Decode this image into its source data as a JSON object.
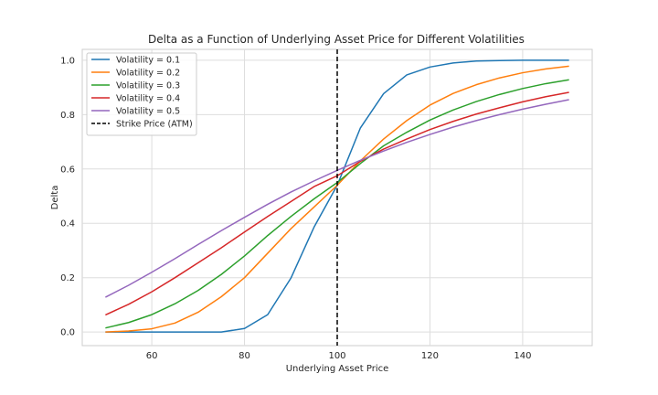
{
  "chart_data": {
    "type": "line",
    "title": "Delta as a Function of Underlying Asset Price for Different Volatilities",
    "xlabel": "Underlying Asset Price",
    "ylabel": "Delta",
    "xlim": [
      45,
      155
    ],
    "ylim": [
      -0.05,
      1.04
    ],
    "xticks": [
      60,
      80,
      100,
      120,
      140
    ],
    "yticks": [
      0.0,
      0.2,
      0.4,
      0.6,
      0.8,
      1.0
    ],
    "grid": true,
    "legend_position": "top-left",
    "x": [
      50,
      55,
      60,
      65,
      70,
      75,
      80,
      85,
      90,
      95,
      100,
      105,
      110,
      115,
      120,
      125,
      130,
      135,
      140,
      145,
      150
    ],
    "series": [
      {
        "name": "Volatility = 0.1",
        "color": "#1f77b4",
        "values": [
          0.0,
          0.0,
          0.0,
          0.0,
          0.0,
          0.0,
          0.013,
          0.064,
          0.198,
          0.386,
          0.54,
          0.751,
          0.877,
          0.946,
          0.975,
          0.99,
          0.997,
          0.999,
          1.0,
          1.0,
          1.0
        ]
      },
      {
        "name": "Volatility = 0.2",
        "color": "#ff7f0e",
        "values": [
          0.0,
          0.004,
          0.012,
          0.033,
          0.073,
          0.13,
          0.2,
          0.29,
          0.38,
          0.46,
          0.54,
          0.63,
          0.71,
          0.778,
          0.835,
          0.878,
          0.91,
          0.935,
          0.954,
          0.968,
          0.978
        ]
      },
      {
        "name": "Volatility = 0.3",
        "color": "#2ca02c",
        "values": [
          0.015,
          0.035,
          0.064,
          0.104,
          0.153,
          0.212,
          0.28,
          0.355,
          0.425,
          0.49,
          0.55,
          0.62,
          0.685,
          0.735,
          0.78,
          0.817,
          0.848,
          0.874,
          0.896,
          0.914,
          0.928
        ]
      },
      {
        "name": "Volatility = 0.4",
        "color": "#d62728",
        "values": [
          0.063,
          0.102,
          0.148,
          0.2,
          0.255,
          0.31,
          0.368,
          0.425,
          0.48,
          0.535,
          0.575,
          0.628,
          0.673,
          0.71,
          0.745,
          0.775,
          0.802,
          0.825,
          0.847,
          0.866,
          0.882
        ]
      },
      {
        "name": "Volatility = 0.5",
        "color": "#9467bd",
        "values": [
          0.128,
          0.172,
          0.22,
          0.27,
          0.322,
          0.373,
          0.422,
          0.47,
          0.515,
          0.556,
          0.595,
          0.632,
          0.666,
          0.698,
          0.727,
          0.754,
          0.778,
          0.8,
          0.82,
          0.838,
          0.855
        ]
      }
    ],
    "reference_lines": [
      {
        "name": "Strike Price (ATM)",
        "orientation": "vertical",
        "x": 100,
        "color": "#000000",
        "style": "dashed"
      }
    ]
  }
}
